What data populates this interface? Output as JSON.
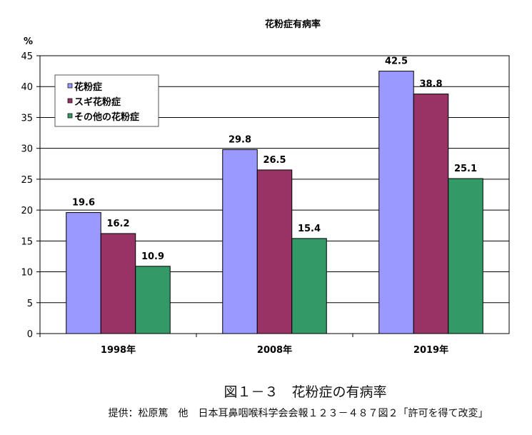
{
  "chart_data": {
    "type": "bar",
    "title": "花粉症有病率",
    "ylabel": "%",
    "xlabel": "",
    "categories": [
      "1998年",
      "2008年",
      "2019年"
    ],
    "series": [
      {
        "name": "花粉症",
        "values": [
          19.6,
          29.8,
          42.5
        ],
        "color": "#9999FF"
      },
      {
        "name": "スギ花粉症",
        "values": [
          16.2,
          26.5,
          38.8
        ],
        "color": "#993366"
      },
      {
        "name": "その他の花粉症",
        "values": [
          10.9,
          15.4,
          25.1
        ],
        "color": "#339966"
      }
    ],
    "ylim": [
      0,
      45
    ],
    "yticks": [
      0,
      5,
      10,
      15,
      20,
      25,
      30,
      35,
      40,
      45
    ],
    "grid": true,
    "legend": "top-left"
  },
  "caption": {
    "figure": "図１－３　花粉症の有病率",
    "source": "提供：松原篤　他　日本耳鼻咽喉科学会会報１２３－４８７図２「許可を得て改変」"
  }
}
